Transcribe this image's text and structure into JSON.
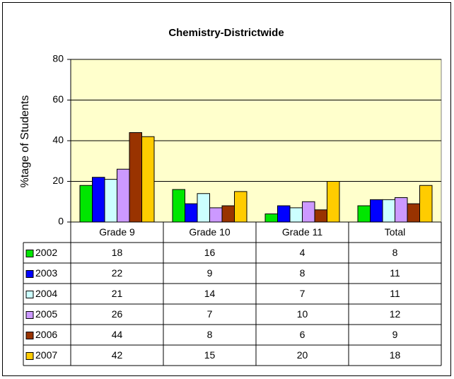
{
  "chart_data": {
    "type": "bar",
    "title": "Chemistry-Districtwide",
    "y_label": "%tage of Students",
    "categories": [
      "Grade 9",
      "Grade 10",
      "Grade 11",
      "Total"
    ],
    "series": [
      {
        "name": "2002",
        "color": "#00e600",
        "values": [
          18,
          16,
          4,
          8
        ]
      },
      {
        "name": "2003",
        "color": "#0000ff",
        "values": [
          22,
          9,
          8,
          11
        ]
      },
      {
        "name": "2004",
        "color": "#ccffff",
        "values": [
          21,
          14,
          7,
          11
        ]
      },
      {
        "name": "2005",
        "color": "#cc99ff",
        "values": [
          26,
          7,
          10,
          12
        ]
      },
      {
        "name": "2006",
        "color": "#993300",
        "values": [
          44,
          8,
          6,
          9
        ]
      },
      {
        "name": "2007",
        "color": "#ffcc00",
        "values": [
          42,
          15,
          20,
          18
        ]
      }
    ],
    "ylim": [
      0,
      80
    ],
    "yticks": [
      0,
      20,
      40,
      60,
      80
    ],
    "grid": true,
    "plot_background": "#ffffcc",
    "data_table": true
  }
}
